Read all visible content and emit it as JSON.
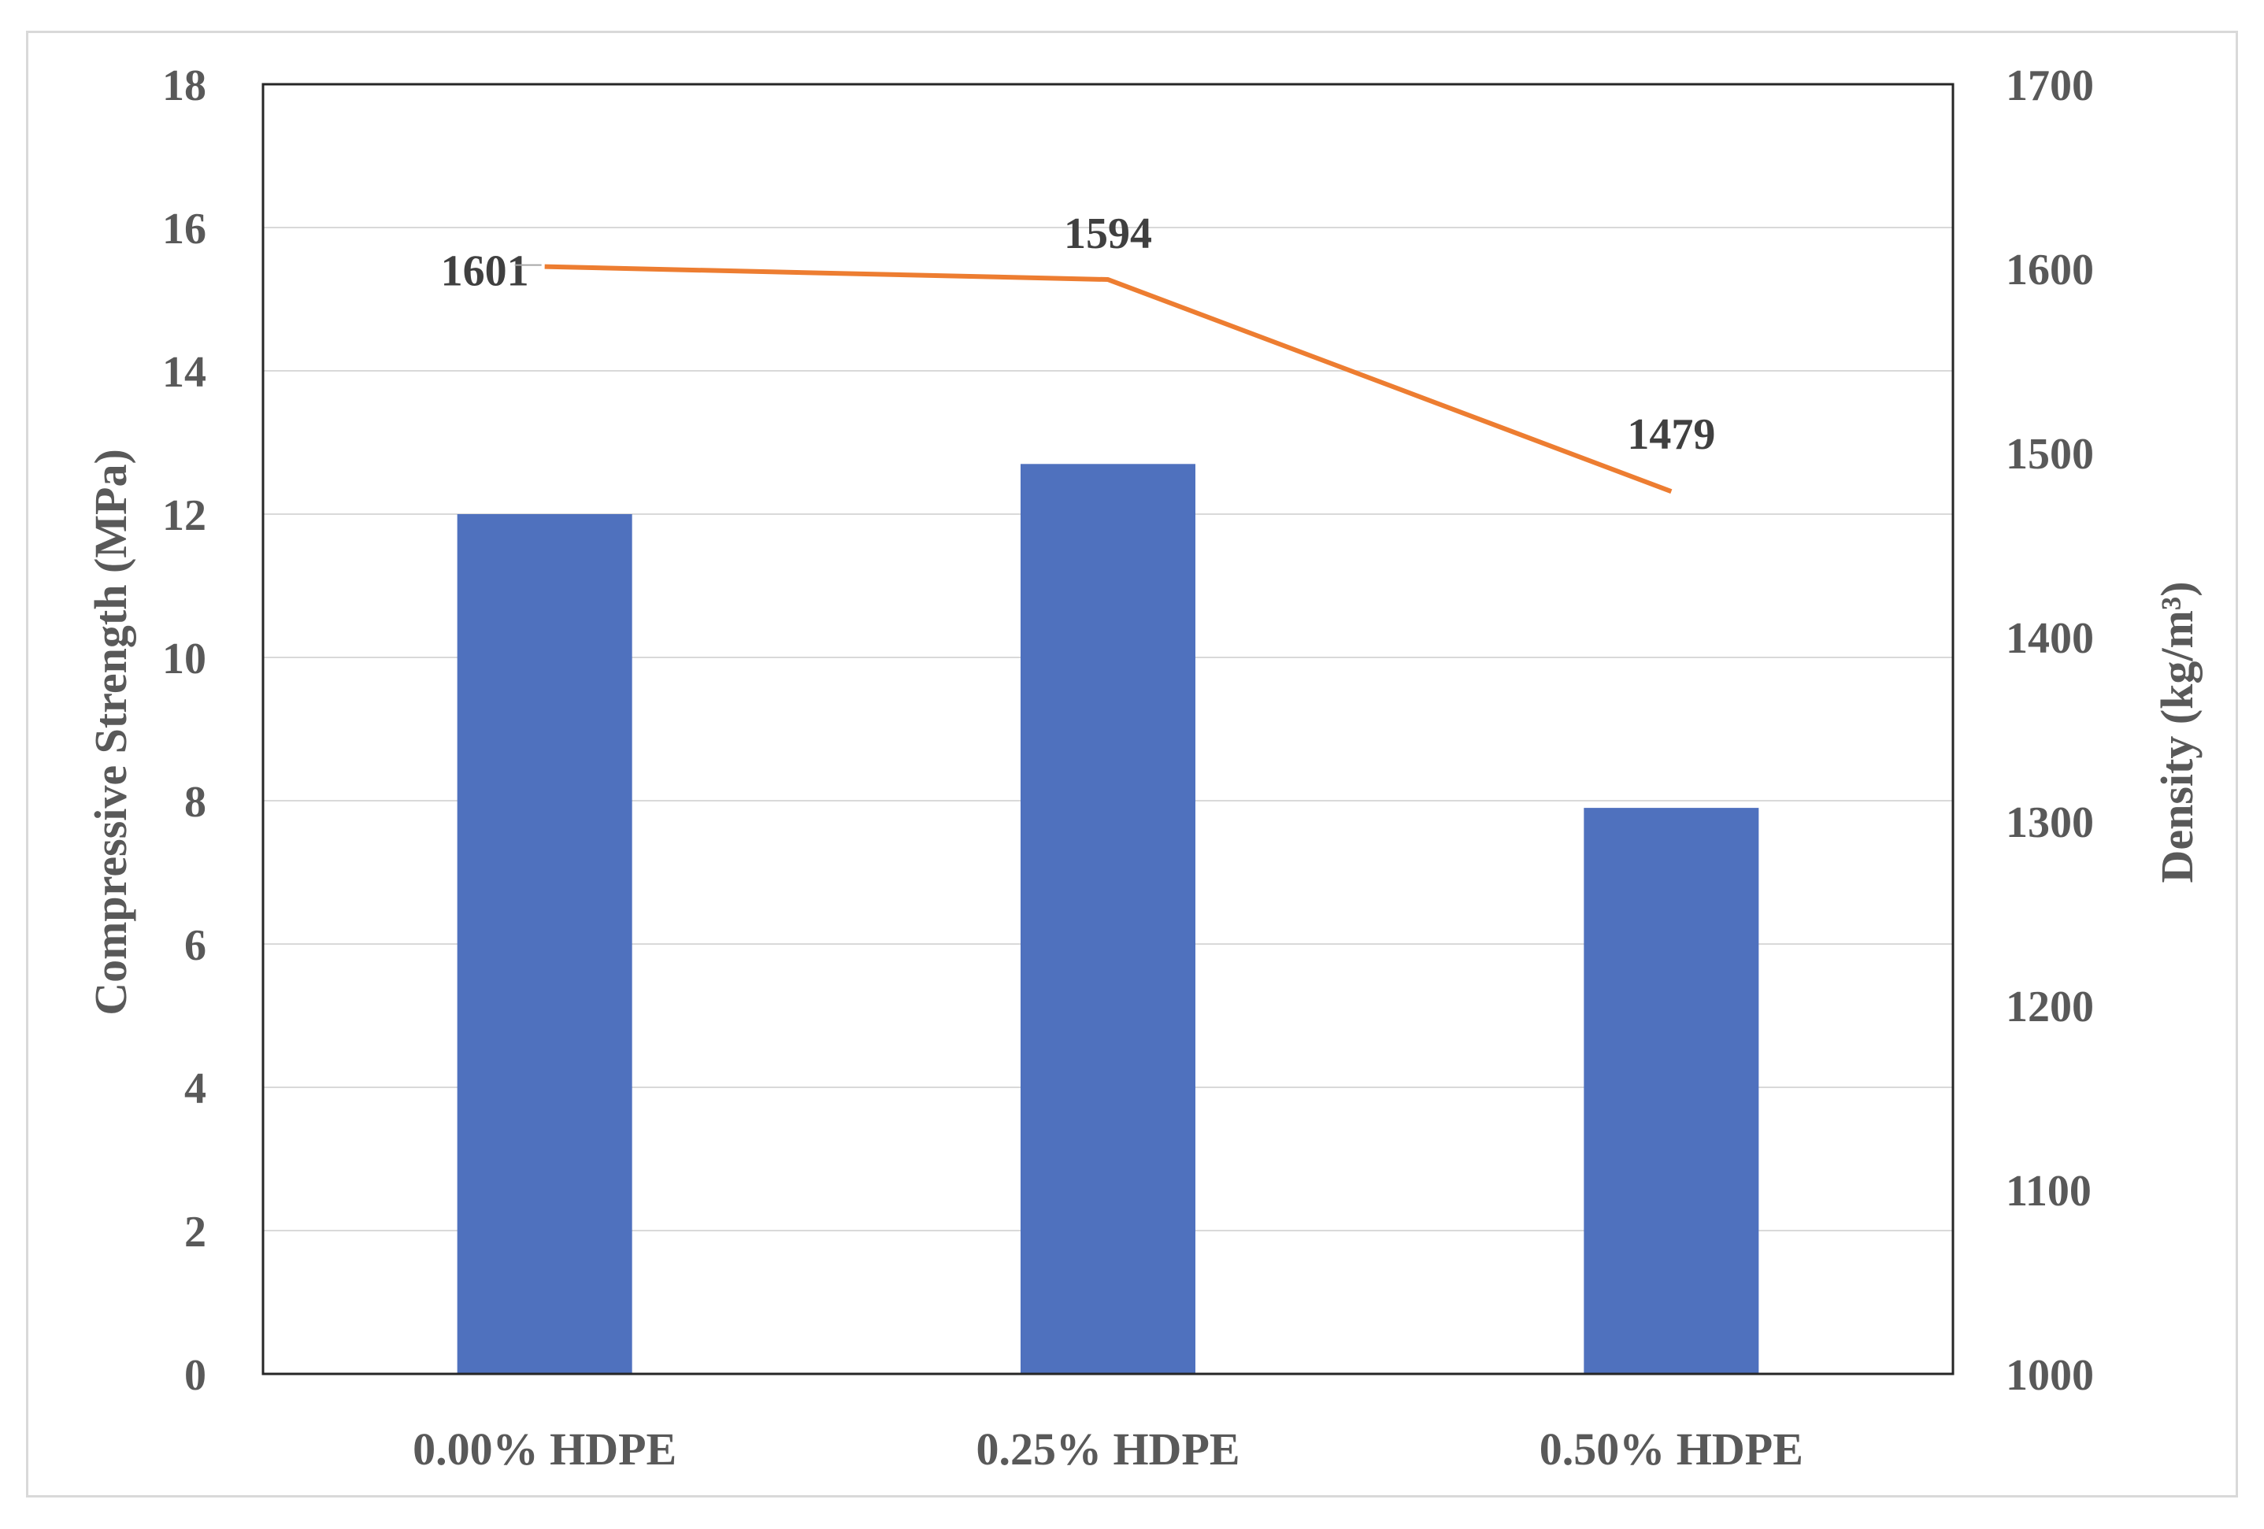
{
  "chart_data": {
    "type": "bar",
    "categories": [
      "0.00% HDPE",
      "0.25% HDPE",
      "0.50% HDPE"
    ],
    "series": [
      {
        "type": "bar",
        "axis": "left",
        "values": [
          12.0,
          12.7,
          7.9
        ],
        "color": "#4f71be"
      },
      {
        "type": "line",
        "axis": "right",
        "values": [
          1601,
          1594,
          1479
        ],
        "data_labels": [
          "1601",
          "1594",
          "1479"
        ],
        "color": "#ed7d31"
      }
    ],
    "ylabel": "Compressive Strength (MPa)",
    "y2label": "Density (kg/m³)",
    "ylim": [
      0,
      18
    ],
    "y2lim": [
      1000,
      1700
    ],
    "yticks": [
      "0",
      "2",
      "4",
      "6",
      "8",
      "10",
      "12",
      "14",
      "16",
      "18"
    ],
    "y2ticks": [
      "1000",
      "1100",
      "1200",
      "1300",
      "1400",
      "1500",
      "1600",
      "1700"
    ],
    "grid": true,
    "legend": "none"
  }
}
